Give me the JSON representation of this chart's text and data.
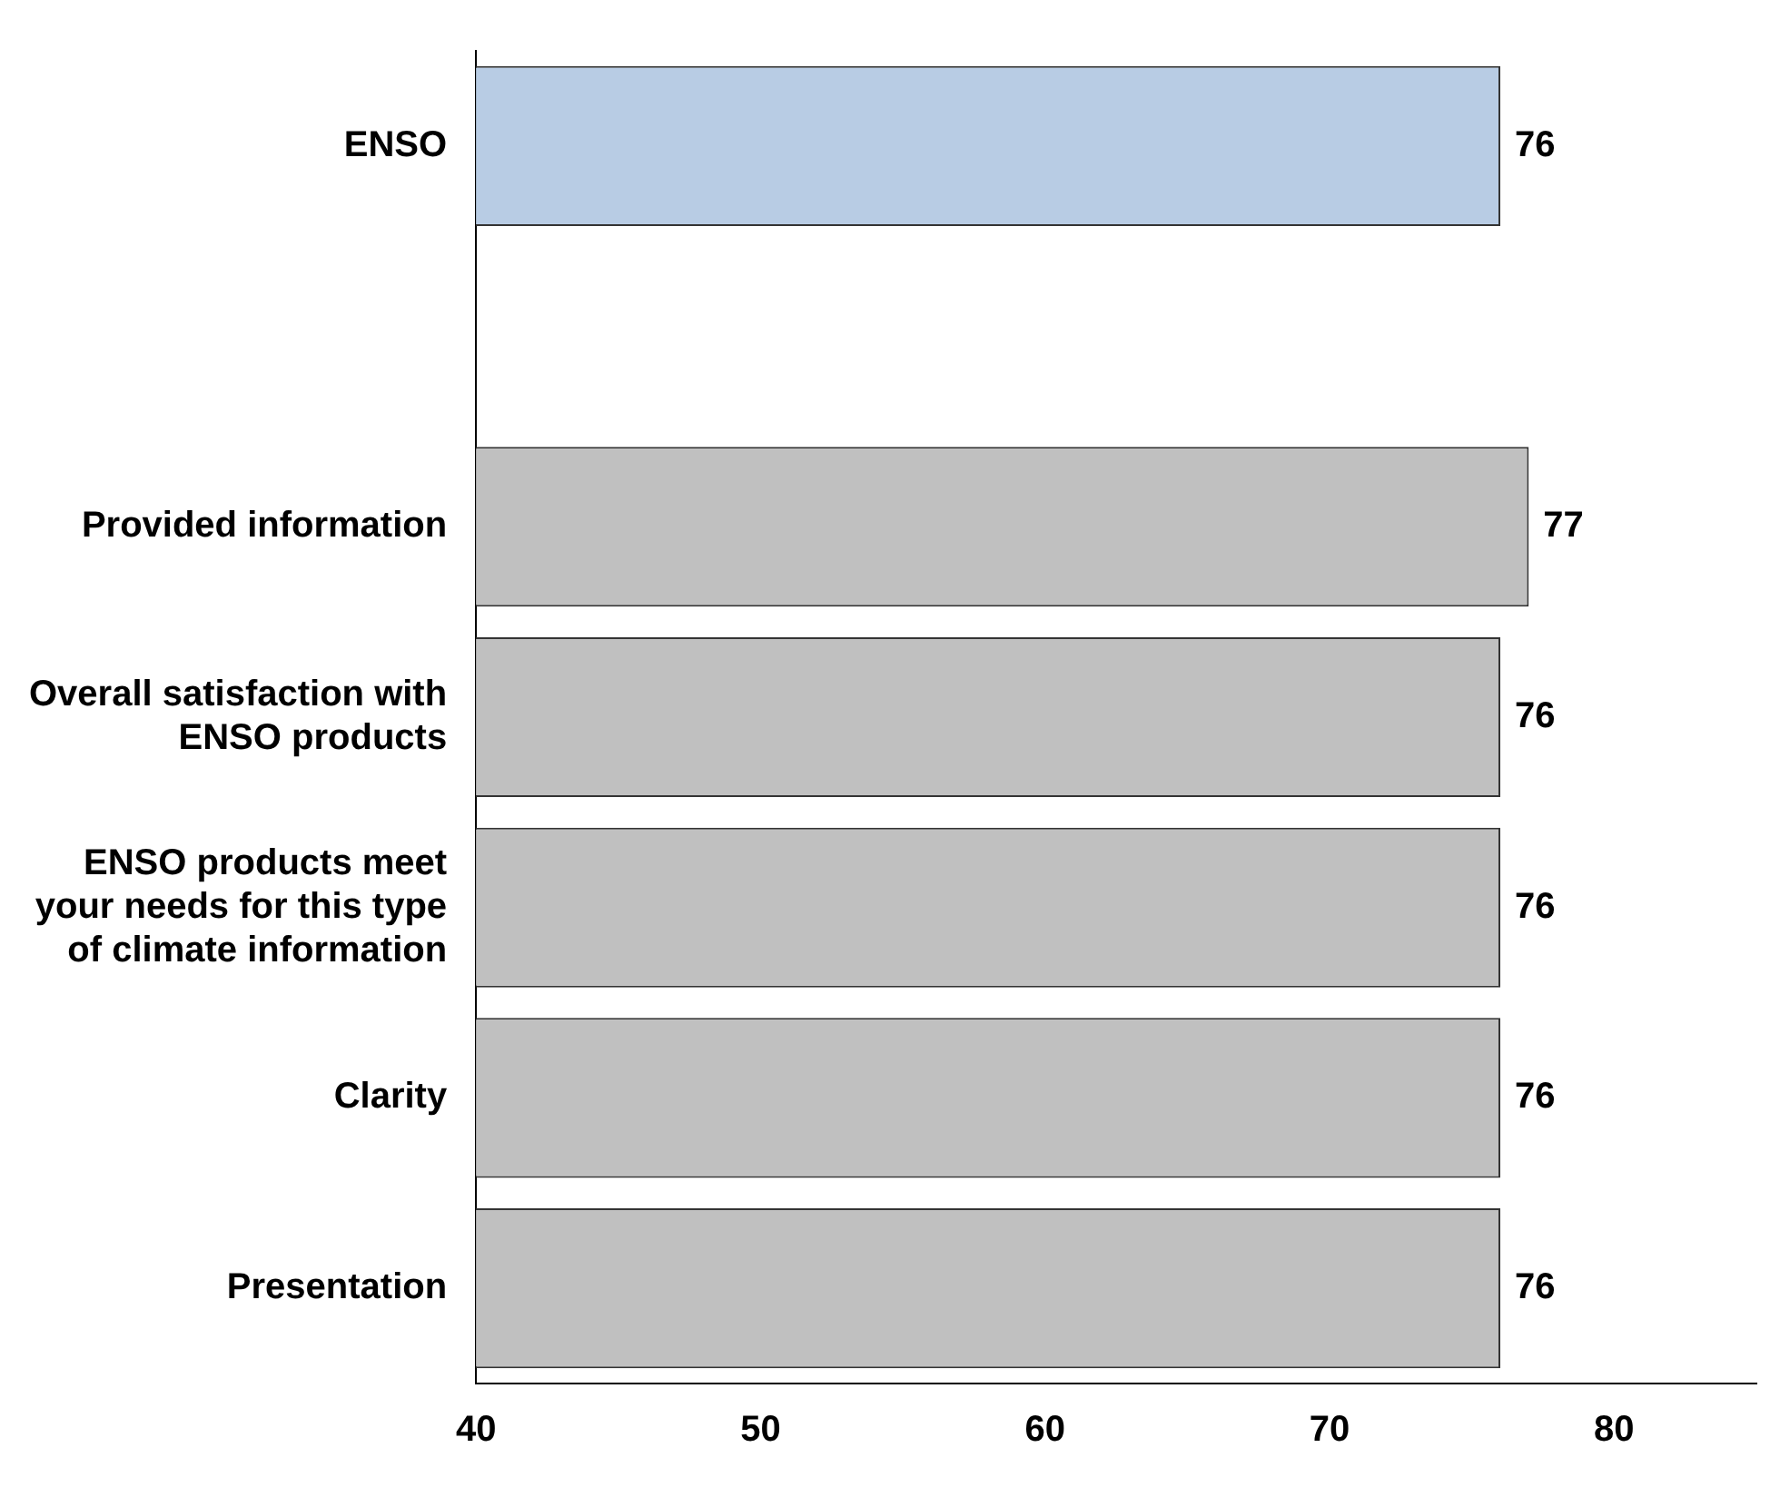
{
  "chart_data": {
    "type": "bar",
    "orientation": "horizontal",
    "categories": [
      "ENSO",
      null,
      "Provided information",
      "Overall satisfaction with\nENSO products",
      "ENSO products meet\nyour needs for this type\nof climate information",
      "Clarity",
      "Presentation"
    ],
    "values": [
      76,
      null,
      77,
      76,
      76,
      76,
      76
    ],
    "colors": [
      "#b8cce4",
      null,
      "#c0c0c0",
      "#c0c0c0",
      "#c0c0c0",
      "#c0c0c0",
      "#c0c0c0"
    ],
    "xlim": [
      40,
      85
    ],
    "xticks": [
      40,
      50,
      60,
      70,
      80
    ],
    "data_labels": true,
    "grid": false,
    "legend": false
  }
}
